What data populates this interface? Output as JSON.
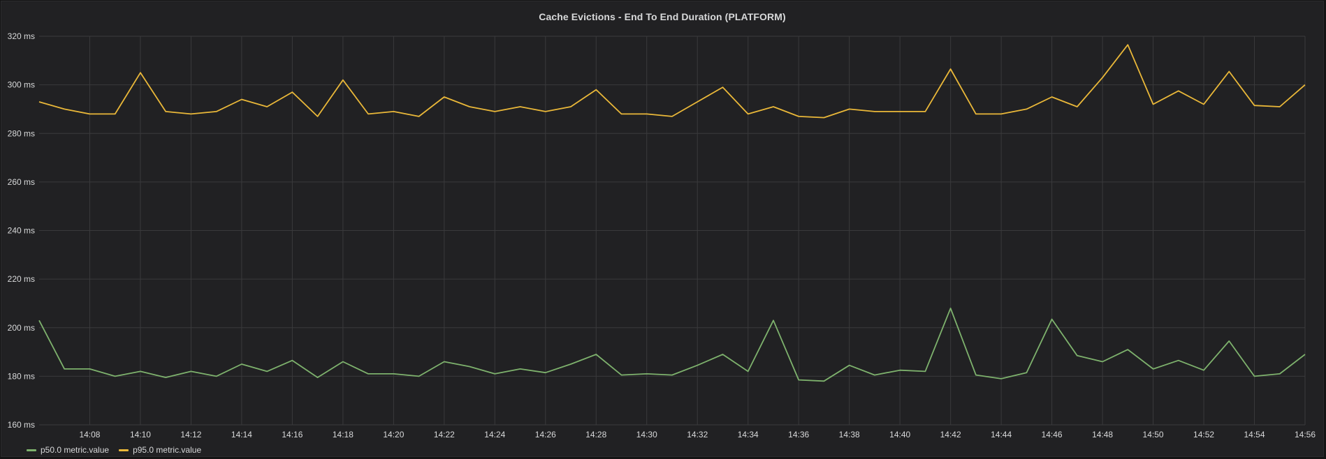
{
  "panel": {
    "title": "Cache Evictions - End To End Duration (PLATFORM)"
  },
  "chart_data": {
    "type": "line",
    "title": "Cache Evictions - End To End Duration (PLATFORM)",
    "xlabel": "",
    "ylabel": "",
    "y_unit": "ms",
    "ylim": [
      160,
      320
    ],
    "y_ticks": [
      160,
      180,
      200,
      220,
      240,
      260,
      280,
      300,
      320
    ],
    "y_tick_labels": [
      "160 ms",
      "180 ms",
      "200 ms",
      "220 ms",
      "240 ms",
      "260 ms",
      "280 ms",
      "300 ms",
      "320 ms"
    ],
    "x_ticks": [
      "14:08",
      "14:10",
      "14:12",
      "14:14",
      "14:16",
      "14:18",
      "14:20",
      "14:22",
      "14:24",
      "14:26",
      "14:28",
      "14:30",
      "14:32",
      "14:34",
      "14:36",
      "14:38",
      "14:40",
      "14:42",
      "14:44",
      "14:46",
      "14:48",
      "14:50",
      "14:52",
      "14:54",
      "14:56"
    ],
    "x": [
      "14:06",
      "14:07",
      "14:08",
      "14:09",
      "14:10",
      "14:11",
      "14:12",
      "14:13",
      "14:14",
      "14:15",
      "14:16",
      "14:17",
      "14:18",
      "14:19",
      "14:20",
      "14:21",
      "14:22",
      "14:23",
      "14:24",
      "14:25",
      "14:26",
      "14:27",
      "14:28",
      "14:29",
      "14:30",
      "14:31",
      "14:32",
      "14:33",
      "14:34",
      "14:35",
      "14:36",
      "14:37",
      "14:38",
      "14:39",
      "14:40",
      "14:41",
      "14:42",
      "14:43",
      "14:44",
      "14:45",
      "14:46",
      "14:47",
      "14:48",
      "14:49",
      "14:50",
      "14:51",
      "14:52",
      "14:53",
      "14:54",
      "14:55",
      "14:56"
    ],
    "grid": true,
    "legend_position": "bottom-left",
    "series": [
      {
        "name": "p50.0 metric.value",
        "color": "#7eb26d",
        "values": [
          203,
          183,
          183,
          180,
          182,
          179.5,
          182,
          180,
          185,
          182,
          186.5,
          179.5,
          186,
          181,
          181,
          180,
          186,
          184,
          181,
          183,
          181.5,
          185,
          189,
          180.5,
          181,
          180.5,
          184.5,
          189,
          182,
          203,
          178.5,
          178,
          184.5,
          180.5,
          182.5,
          182,
          208,
          180.5,
          179,
          181.5,
          203.5,
          188.5,
          186,
          191,
          183,
          186.5,
          182.5,
          194.5,
          180,
          181,
          189
        ]
      },
      {
        "name": "p95.0 metric.value",
        "color": "#eab839",
        "values": [
          293,
          290,
          288,
          288,
          305,
          289,
          288,
          289,
          294,
          291,
          297,
          287,
          302,
          288,
          289,
          287,
          295,
          291,
          289,
          291,
          289,
          291,
          298,
          288,
          288,
          287,
          293,
          299,
          288,
          291,
          287,
          286.5,
          290,
          289,
          289,
          289,
          306.5,
          288,
          288,
          290,
          295,
          291,
          303,
          316.5,
          292,
          297.5,
          292,
          305.5,
          291.5,
          291,
          300
        ]
      }
    ]
  }
}
